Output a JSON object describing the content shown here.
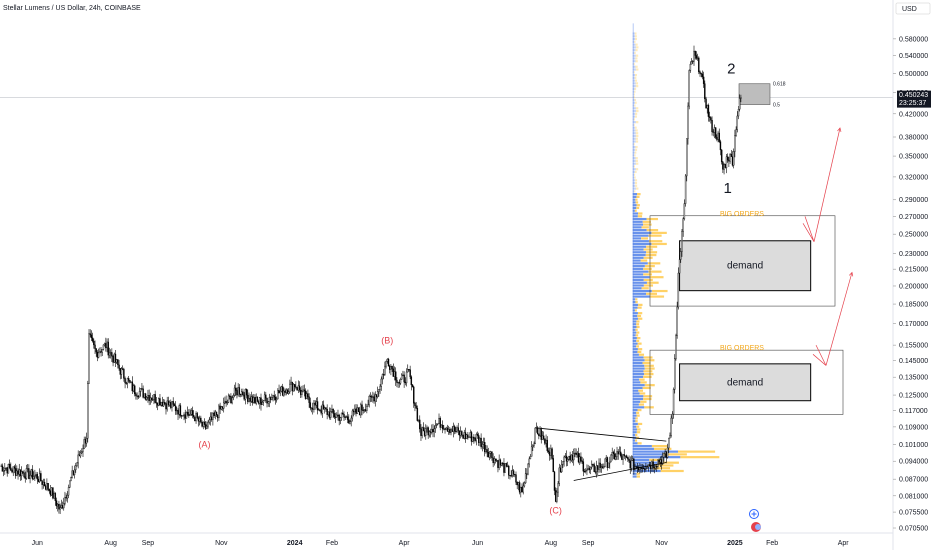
{
  "title": "Stellar Lumens / US Dollar, 24h, COINBASE",
  "currency_label": "USD",
  "current_price": "0.450243",
  "countdown": "23:25:37",
  "chart_data": {
    "type": "candlestick",
    "y_scale": "log",
    "ylim": [
      0.069,
      0.64
    ],
    "y_ticks": [
      "0.580000",
      "0.540000",
      "0.500000",
      "0.460000",
      "0.420000",
      "0.380000",
      "0.350000",
      "0.320000",
      "0.290000",
      "0.270000",
      "0.250000",
      "0.230000",
      "0.215000",
      "0.200000",
      "0.185000",
      "0.170000",
      "0.155000",
      "0.145000",
      "0.135000",
      "0.125000",
      "0.117000",
      "0.109000",
      "0.101000",
      "0.094000",
      "0.087000",
      "0.081000",
      "0.075500",
      "0.070500"
    ],
    "x_ticks": [
      {
        "label": "Jun",
        "bold": false,
        "date": "2023-06-01"
      },
      {
        "label": "Aug",
        "bold": false,
        "date": "2023-08-01"
      },
      {
        "label": "Sep",
        "bold": false,
        "date": "2023-09-01"
      },
      {
        "label": "Nov",
        "bold": false,
        "date": "2023-11-01"
      },
      {
        "label": "2024",
        "bold": true,
        "date": "2024-01-01"
      },
      {
        "label": "Feb",
        "bold": false,
        "date": "2024-02-01"
      },
      {
        "label": "Apr",
        "bold": false,
        "date": "2024-04-01"
      },
      {
        "label": "Jun",
        "bold": false,
        "date": "2024-06-01"
      },
      {
        "label": "Aug",
        "bold": false,
        "date": "2024-08-01"
      },
      {
        "label": "Sep",
        "bold": false,
        "date": "2024-09-01"
      },
      {
        "label": "Nov",
        "bold": false,
        "date": "2024-11-01"
      },
      {
        "label": "2025",
        "bold": true,
        "date": "2025-01-01"
      },
      {
        "label": "Feb",
        "bold": false,
        "date": "2025-02-01"
      },
      {
        "label": "Apr",
        "bold": false,
        "date": "2025-04-01"
      }
    ],
    "price_path": [
      [
        "2023-05-01",
        0.092
      ],
      [
        "2023-06-01",
        0.088
      ],
      [
        "2023-06-12",
        0.083
      ],
      [
        "2023-06-20",
        0.076
      ],
      [
        "2023-07-05",
        0.095
      ],
      [
        "2023-07-12",
        0.105
      ],
      [
        "2023-07-14",
        0.16
      ],
      [
        "2023-07-20",
        0.15
      ],
      [
        "2023-07-28",
        0.155
      ],
      [
        "2023-08-10",
        0.138
      ],
      [
        "2023-08-20",
        0.128
      ],
      [
        "2023-09-01",
        0.125
      ],
      [
        "2023-09-15",
        0.121
      ],
      [
        "2023-10-01",
        0.116
      ],
      [
        "2023-10-10",
        0.114
      ],
      [
        "2023-10-18",
        0.108
      ],
      [
        "2023-11-01",
        0.118
      ],
      [
        "2023-11-15",
        0.128
      ],
      [
        "2023-12-01",
        0.121
      ],
      [
        "2023-12-15",
        0.125
      ],
      [
        "2024-01-01",
        0.131
      ],
      [
        "2024-01-15",
        0.12
      ],
      [
        "2024-02-01",
        0.115
      ],
      [
        "2024-02-15",
        0.113
      ],
      [
        "2024-03-01",
        0.12
      ],
      [
        "2024-03-10",
        0.127
      ],
      [
        "2024-03-18",
        0.146
      ],
      [
        "2024-03-28",
        0.132
      ],
      [
        "2024-04-05",
        0.137
      ],
      [
        "2024-04-15",
        0.106
      ],
      [
        "2024-05-01",
        0.111
      ],
      [
        "2024-05-20",
        0.105
      ],
      [
        "2024-06-01",
        0.104
      ],
      [
        "2024-06-15",
        0.095
      ],
      [
        "2024-07-01",
        0.088
      ],
      [
        "2024-07-08",
        0.082
      ],
      [
        "2024-07-15",
        0.098
      ],
      [
        "2024-07-20",
        0.108
      ],
      [
        "2024-08-01",
        0.098
      ],
      [
        "2024-08-05",
        0.081
      ],
      [
        "2024-08-10",
        0.095
      ],
      [
        "2024-08-20",
        0.097
      ],
      [
        "2024-09-01",
        0.09
      ],
      [
        "2024-09-15",
        0.093
      ],
      [
        "2024-09-25",
        0.097
      ],
      [
        "2024-10-01",
        0.095
      ],
      [
        "2024-10-10",
        0.092
      ],
      [
        "2024-10-25",
        0.093
      ],
      [
        "2024-11-05",
        0.096
      ],
      [
        "2024-11-10",
        0.115
      ],
      [
        "2024-11-15",
        0.21
      ],
      [
        "2024-11-20",
        0.28
      ],
      [
        "2024-11-24",
        0.5
      ],
      [
        "2024-11-28",
        0.54
      ],
      [
        "2024-12-03",
        0.51
      ],
      [
        "2024-12-08",
        0.44
      ],
      [
        "2024-12-12",
        0.4
      ],
      [
        "2024-12-18",
        0.38
      ],
      [
        "2024-12-22",
        0.33
      ],
      [
        "2024-12-26",
        0.35
      ],
      [
        "2024-12-30",
        0.345
      ],
      [
        "2025-01-03",
        0.42
      ],
      [
        "2025-01-06",
        0.450243
      ]
    ],
    "wave_labels": [
      {
        "text": "(A)",
        "date": "2023-10-18",
        "price": 0.101
      },
      {
        "text": "(B)",
        "date": "2024-03-18",
        "price": 0.158
      },
      {
        "text": "(C)",
        "date": "2024-08-05",
        "price": 0.076
      }
    ],
    "count_labels": [
      {
        "text": "2",
        "date": "2024-12-29",
        "price": 0.51
      },
      {
        "text": "1",
        "date": "2024-12-26",
        "price": 0.305
      }
    ],
    "fib_levels": [
      {
        "label": "0.618",
        "price": 0.478
      },
      {
        "label": "0.5",
        "price": 0.437
      }
    ],
    "zones": [
      {
        "label": "demand",
        "top": 0.243,
        "bottom": 0.196,
        "start": "2024-11-16",
        "end": "2025-03-05"
      },
      {
        "label": "demand",
        "top": 0.143,
        "bottom": 0.122,
        "start": "2024-11-16",
        "end": "2025-03-05"
      }
    ],
    "big_orders_labels": [
      {
        "text": "BIG ORDERS",
        "price": 0.273
      },
      {
        "text": "BIG ORDERS",
        "price": 0.153
      }
    ],
    "volume_profile_note": "horizontal volume-by-price histogram drawn at left of Nov 2024",
    "colors": {
      "candle": "#000000",
      "wave_label": "#e5414c",
      "arrow": "#e5414c",
      "big_orders": "#f2a71b",
      "zone_fill": "#dcdcdc",
      "vp_blue": "#4f7fe8",
      "vp_orange": "#ffcc55",
      "price_tag": "#131722"
    }
  }
}
